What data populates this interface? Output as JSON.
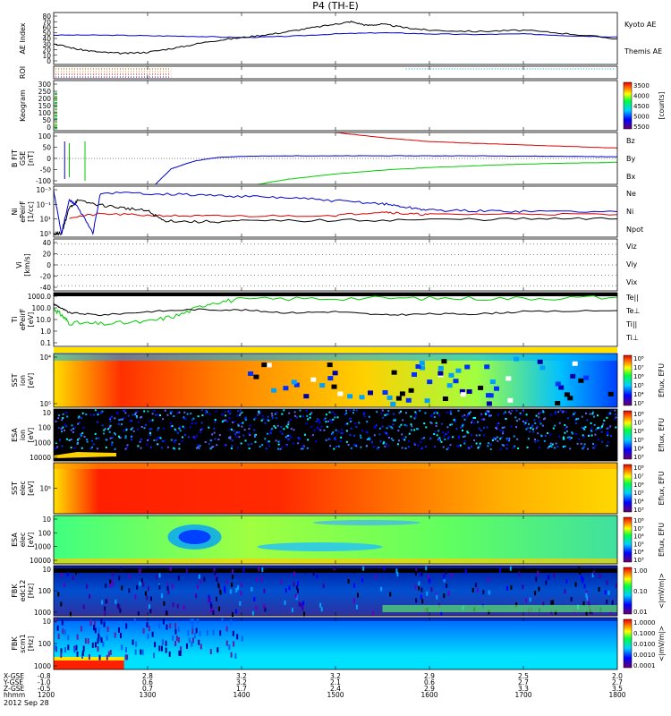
{
  "title": "P4 (TH-E)",
  "footer": {
    "date": "2012 Sep 28",
    "row_labels": [
      "X-GSE",
      "Y-GSE",
      "Z-GSE",
      "hhmm"
    ],
    "columns": [
      [
        "-0.8",
        "-1.0",
        "-0.5",
        "1200"
      ],
      [
        "2.8",
        "0.6",
        "0.7",
        "1300"
      ],
      [
        "3.2",
        "3.2",
        "1.7",
        "1400"
      ],
      [
        "3.2",
        "2.1",
        "2.4",
        "1500"
      ],
      [
        "2.9",
        "0.6",
        "2.9",
        "1600"
      ],
      [
        "2.5",
        "2.7",
        "3.3",
        "1700"
      ],
      [
        "2.0",
        "2.7",
        "3.5",
        "1800"
      ]
    ]
  },
  "colors": {
    "blue": "#0000cc",
    "red": "#dd0000",
    "green": "#00cc00",
    "black": "#000000"
  },
  "chart_data": [
    {
      "type": "line",
      "name": "ae",
      "ylabel": "AE Index",
      "yticks": [
        "0",
        "10",
        "20",
        "30",
        "40",
        "50",
        "60",
        "70",
        "80"
      ],
      "ylim": [
        0,
        85
      ],
      "series": [
        {
          "name": "Kyoto AE",
          "color": "#0000cc",
          "x": [
            1200,
            1230,
            1300,
            1330,
            1400,
            1430,
            1500,
            1530,
            1600,
            1630,
            1700,
            1730,
            1800
          ],
          "y": [
            48,
            48,
            47,
            46,
            44,
            46,
            50,
            52,
            50,
            49,
            50,
            47,
            45
          ]
        },
        {
          "name": "Themis AE",
          "color": "#000000",
          "x": [
            1200,
            1215,
            1230,
            1245,
            1300,
            1320,
            1340,
            1400,
            1420,
            1440,
            1500,
            1510,
            1520,
            1530,
            1545,
            1600,
            1630,
            1700,
            1730,
            1800
          ],
          "y": [
            34,
            25,
            20,
            18,
            20,
            28,
            38,
            44,
            50,
            58,
            66,
            70,
            64,
            66,
            60,
            56,
            54,
            56,
            50,
            42
          ]
        }
      ]
    },
    {
      "type": "line",
      "name": "roi",
      "ylabel": "ROI",
      "yticks": [],
      "ylim": [
        0,
        1
      ]
    },
    {
      "type": "heatmap",
      "name": "keogram",
      "ylabel": "Keogram",
      "yticks": [
        "0",
        "50",
        "100",
        "150",
        "200",
        "250",
        "300"
      ],
      "ylim": [
        0,
        300
      ],
      "colorbar": {
        "ticks": [
          "3500",
          "4000",
          "4500",
          "5000",
          "5500"
        ],
        "label": "[counts]"
      }
    },
    {
      "type": "line",
      "name": "bfit",
      "ylabel": "B FIT",
      "ylabel2": "GSE",
      "ylabel3": "[nT]",
      "yticks": [
        "-100",
        "-50",
        "0",
        "50",
        "100"
      ],
      "ylim": [
        -100,
        100
      ],
      "series": [
        {
          "name": "Bz",
          "color": "#dd0000",
          "x": [
            1500,
            1530,
            1600,
            1630,
            1700,
            1730,
            1800
          ],
          "y": [
            100,
            80,
            65,
            58,
            52,
            46,
            40
          ]
        },
        {
          "name": "By",
          "color": "#00cc00",
          "x": [
            1410,
            1430,
            1500,
            1530,
            1600,
            1630,
            1700,
            1730,
            1800
          ],
          "y": [
            -100,
            -80,
            -60,
            -45,
            -35,
            -28,
            -22,
            -18,
            -15
          ]
        },
        {
          "name": "Bx",
          "color": "#0000cc",
          "x": [
            1305,
            1315,
            1330,
            1345,
            1400,
            1430,
            1500,
            1530,
            1600,
            1630,
            1700,
            1730,
            1800
          ],
          "y": [
            -100,
            -40,
            -10,
            4,
            8,
            10,
            10,
            10,
            10,
            10,
            9,
            8,
            6
          ]
        }
      ]
    },
    {
      "type": "line",
      "name": "density",
      "ylabel": "Ni",
      "ylabel2": "ePeirF",
      "ylabel3": "[1/cc]",
      "yticks": [
        "10³",
        "10¹",
        "10⁻¹",
        "10⁻³"
      ],
      "ylim": [
        -3.5,
        3.5
      ],
      "series": [
        {
          "name": "Ne",
          "color": "#dd0000"
        },
        {
          "name": "Ni",
          "color": "#0000cc"
        },
        {
          "name": "Npot",
          "color": "#000000"
        }
      ]
    },
    {
      "type": "line",
      "name": "velocity",
      "ylabel": "Vi",
      "ylabel2": "[km/s]",
      "yticks": [
        "-40",
        "-20",
        "0",
        "20",
        "40"
      ],
      "ylim": [
        -50,
        50
      ],
      "series": [
        {
          "name": "Viz",
          "color": "#dd0000"
        },
        {
          "name": "Viy",
          "color": "#00cc00"
        },
        {
          "name": "Vix",
          "color": "#0000cc"
        }
      ]
    },
    {
      "type": "line",
      "name": "temperature",
      "ylabel": "Ti",
      "ylabel2": "ePeirF",
      "ylabel3": "[eV]",
      "yticks": [
        "0.1",
        "1.0",
        "10.0",
        "100.0",
        "1000.0"
      ],
      "ylim": [
        -1.2,
        3.6
      ],
      "series": [
        {
          "name": "Te||",
          "color": "#000000"
        },
        {
          "name": "Te⊥",
          "color": "#dd0000"
        },
        {
          "name": "Ti||",
          "color": "#00cc00"
        },
        {
          "name": "Ti⊥",
          "color": "#0000cc"
        }
      ]
    },
    {
      "type": "heatmap",
      "name": "sst_ion",
      "ylabel": "SST",
      "ylabel2": "ion",
      "ylabel3": "[eV]",
      "yticks": [
        "10⁵",
        "10⁴"
      ],
      "colorbar": {
        "ticks": [
          "10⁸",
          "10⁷",
          "10⁶",
          "10⁵",
          "10⁴",
          "10³"
        ],
        "label": "Eflux, EFU"
      }
    },
    {
      "type": "heatmap",
      "name": "esa_ion",
      "ylabel": "ESA",
      "ylabel2": "ion",
      "ylabel3": "[eV]",
      "yticks": [
        "10000",
        "1000",
        "100",
        "10"
      ],
      "colorbar": {
        "ticks": [
          "10⁸",
          "10⁷",
          "10⁶",
          "10⁵",
          "10⁴",
          "10³"
        ],
        "label": "Eflux, EFU"
      }
    },
    {
      "type": "heatmap",
      "name": "sst_elec",
      "ylabel": "SST",
      "ylabel2": "elec",
      "ylabel3": "[eV]",
      "yticks": [
        "10⁵"
      ],
      "colorbar": {
        "ticks": [
          "10⁸",
          "10⁷",
          "10⁶",
          "10⁵",
          "10⁴",
          "10³"
        ],
        "label": "Eflux, EFU"
      }
    },
    {
      "type": "heatmap",
      "name": "esa_elec",
      "ylabel": "ESA",
      "ylabel2": "elec",
      "ylabel3": "[eV]",
      "yticks": [
        "10000",
        "1000",
        "100",
        "10"
      ],
      "colorbar": {
        "ticks": [
          "10⁸",
          "10⁷",
          "10⁶",
          "10⁵",
          "10⁴",
          "10³"
        ],
        "label": "Eflux, EFU"
      }
    },
    {
      "type": "heatmap",
      "name": "fbk_edc",
      "ylabel": "FBK",
      "ylabel2": "edc12",
      "ylabel3": "[Hz]",
      "yticks": [
        "1000",
        "100",
        "10"
      ],
      "colorbar": {
        "ticks": [
          "1.00",
          "0.10",
          "0.01"
        ],
        "label": "<|mV/m|>"
      }
    },
    {
      "type": "heatmap",
      "name": "fbk_scm",
      "ylabel": "FBK",
      "ylabel2": "scm1",
      "ylabel3": "[Hz]",
      "yticks": [
        "1000",
        "100",
        "10"
      ],
      "colorbar": {
        "ticks": [
          "1.0000",
          "0.1000",
          "0.0100",
          "0.0010",
          "0.0001"
        ],
        "label": "<|mV/m|>"
      }
    }
  ]
}
